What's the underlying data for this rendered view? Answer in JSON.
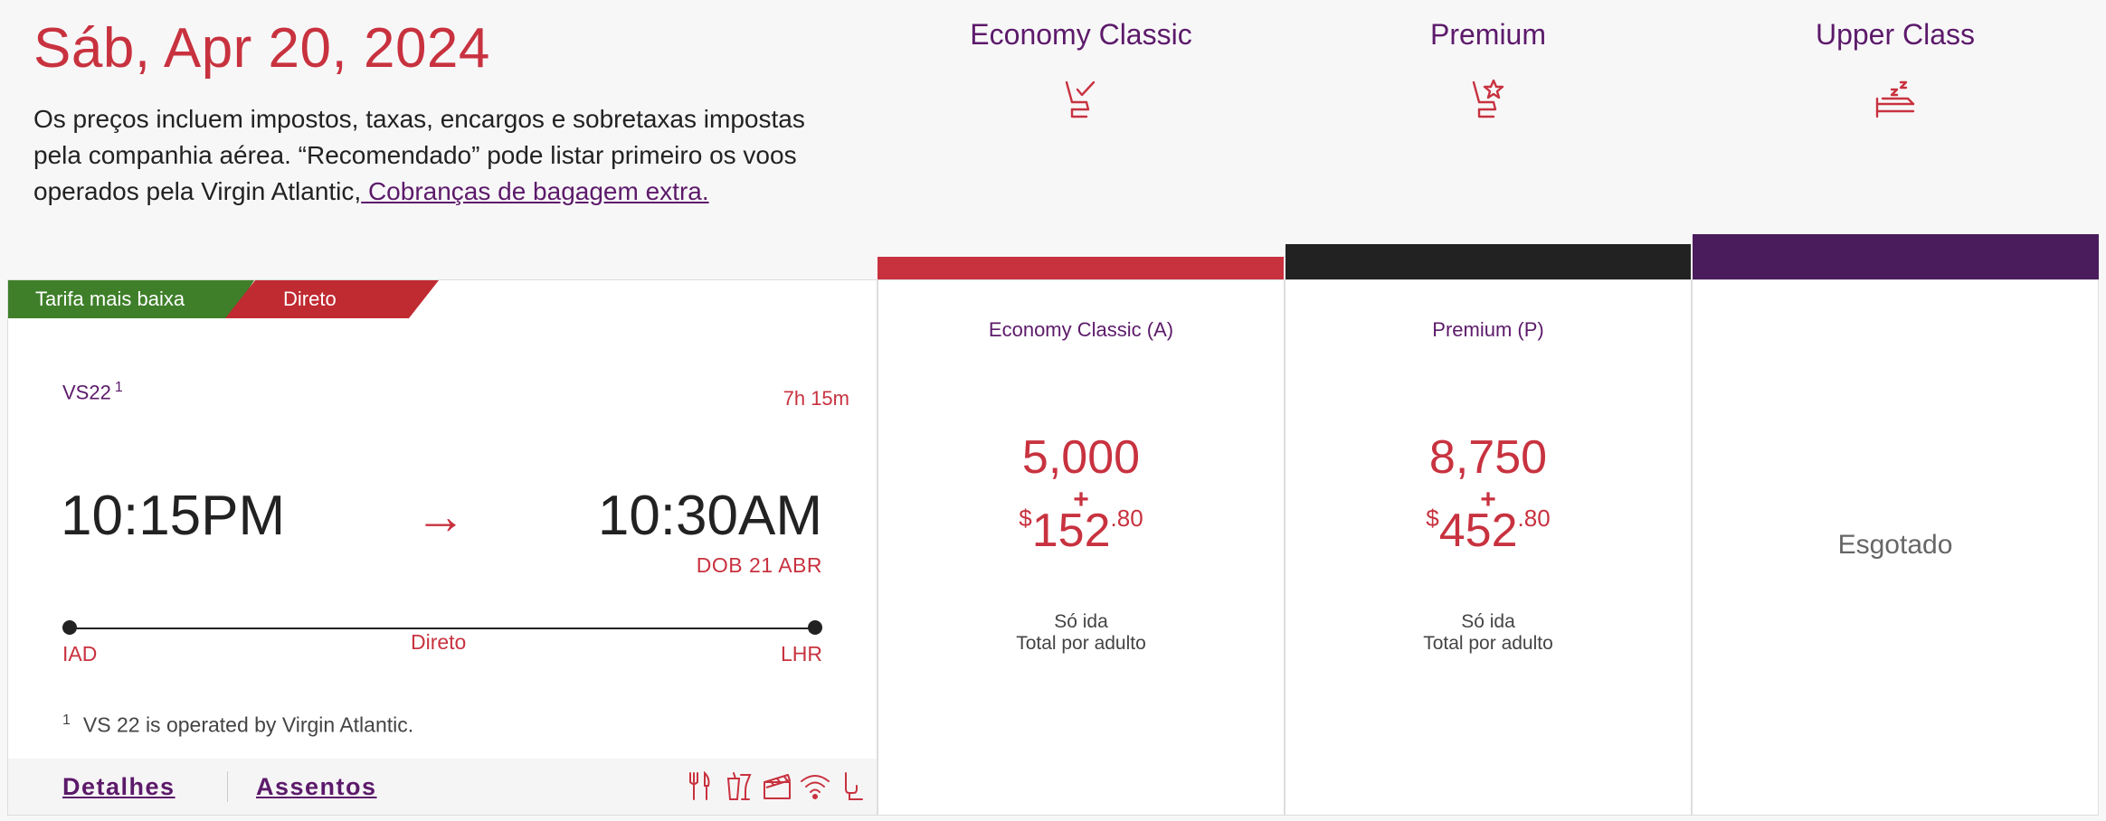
{
  "header": {
    "date": "Sáb, Apr 20, 2024",
    "notice": "Os preços incluem impostos, taxas, encargos e sobretaxas impostas pela companhia aérea. “Recomendado” pode listar primeiro os voos operados pela Virgin Atlantic,",
    "notice_link": " Cobranças de bagagem extra."
  },
  "cabins": [
    {
      "name": "Economy Classic",
      "icon": "seat-check-icon",
      "color": "#c8323f"
    },
    {
      "name": "Premium",
      "icon": "seat-star-icon",
      "color": "#222222"
    },
    {
      "name": "Upper Class",
      "icon": "bed-icon",
      "color": "#4a1c5c"
    }
  ],
  "flight": {
    "tag_lowest": "Tarifa mais baixa",
    "tag_direct": "Direto",
    "number": "VS22",
    "footnote_mark": "1",
    "duration": "7h 15m",
    "depart_time": "10:15PM",
    "arrow": "→",
    "arrive_time": "10:30AM",
    "arrive_date": "DOB 21 ABR",
    "origin": "IAD",
    "stops": "Direto",
    "destination": "LHR",
    "footnote": "VS 22 is operated by Virgin Atlantic.",
    "details_label": "Detalhes",
    "seats_label": "Assentos",
    "amenities": [
      "meal-icon",
      "drinks-icon",
      "entertainment-icon",
      "wifi-icon",
      "power-icon"
    ]
  },
  "fares": [
    {
      "label": "Economy Classic (A)",
      "points": "5,000",
      "plus": "+",
      "currency": "$",
      "amount": "152",
      "cents": ".80",
      "trip": "Só ida",
      "basis": "Total por adulto"
    },
    {
      "label": "Premium (P)",
      "points": "8,750",
      "plus": "+",
      "currency": "$",
      "amount": "452",
      "cents": ".80",
      "trip": "Só ida",
      "basis": "Total por adulto"
    },
    {
      "status": "Esgotado"
    }
  ]
}
